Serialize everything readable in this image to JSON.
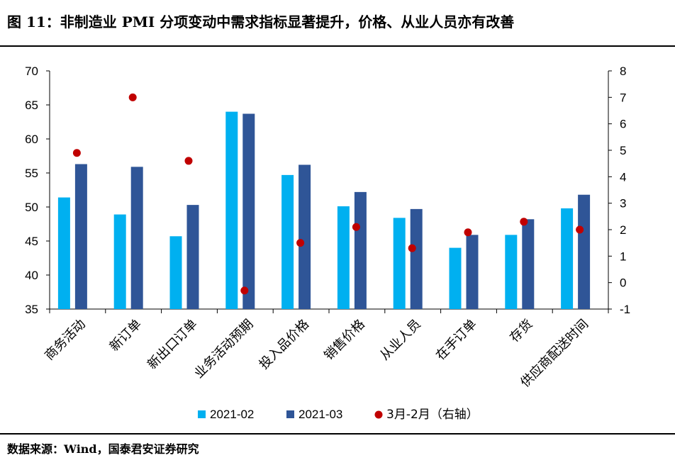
{
  "figure": {
    "title": "图 11：非制造业 PMI 分项变动中需求指标显著提升，价格、从业人员亦有改善",
    "source": "数据来源：Wind，国泰君安证券研究"
  },
  "colors": {
    "feb": "#00B0F0",
    "mar": "#2F5597",
    "diff": "#C00000",
    "axis": "#000000"
  },
  "chart_data": {
    "type": "bar",
    "categories": [
      "商务活动",
      "新订单",
      "新出口订单",
      "业务活动预期",
      "投入品价格",
      "销售价格",
      "从业人员",
      "在手订单",
      "存货",
      "供应商配送时间"
    ],
    "series": [
      {
        "name": "2021-02",
        "type": "bar",
        "axis": "left",
        "values": [
          51.4,
          48.9,
          45.7,
          64.0,
          54.7,
          50.1,
          48.4,
          44.0,
          45.9,
          49.8
        ]
      },
      {
        "name": "2021-03",
        "type": "bar",
        "axis": "left",
        "values": [
          56.3,
          55.9,
          50.3,
          63.7,
          56.2,
          52.2,
          49.7,
          45.9,
          48.2,
          51.8
        ]
      },
      {
        "name": "3月-2月（右轴）",
        "type": "scatter",
        "axis": "right",
        "values": [
          4.9,
          7.0,
          4.6,
          -0.3,
          1.5,
          2.1,
          1.3,
          1.9,
          2.3,
          2.0
        ]
      }
    ],
    "y_left": {
      "min": 35,
      "max": 70,
      "ticks": [
        35,
        40,
        45,
        50,
        55,
        60,
        65,
        70
      ]
    },
    "y_right": {
      "min": -1,
      "max": 8,
      "ticks": [
        -1,
        0,
        1,
        2,
        3,
        4,
        5,
        6,
        7,
        8
      ]
    },
    "legend_position": "bottom",
    "grid": false
  }
}
